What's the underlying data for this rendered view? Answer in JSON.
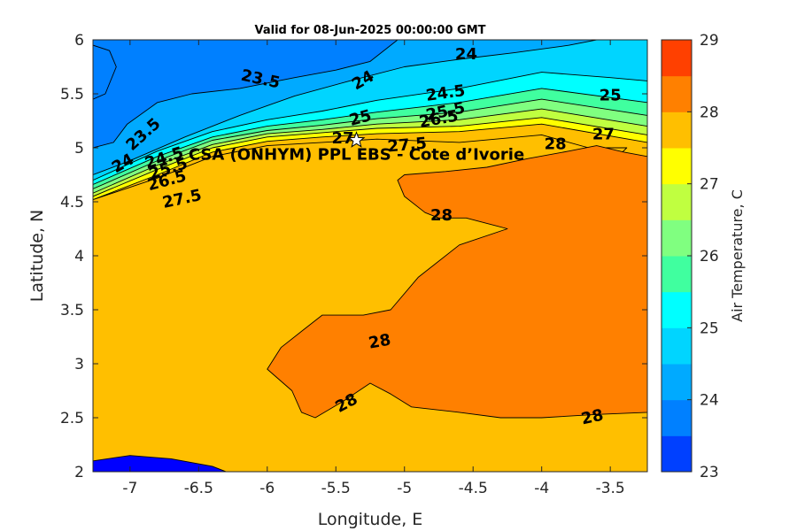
{
  "chart_data": {
    "type": "heatmap",
    "title": "Valid for 08-Jun-2025 00:00:00 GMT",
    "xlabel": "Longitude, E",
    "ylabel": "Latitude, N",
    "colorbar_label": "Air Temperature, C",
    "xlim": [
      -7.27,
      -3.23
    ],
    "ylim": [
      2,
      6
    ],
    "xticks": [
      -7,
      -6.5,
      -6,
      -5.5,
      -5,
      -4.5,
      -4,
      -3.5
    ],
    "xtick_labels": [
      "-7",
      "-6.5",
      "-6",
      "-5.5",
      "-5",
      "-4.5",
      "-4",
      "-3.5"
    ],
    "yticks": [
      2,
      2.5,
      3,
      3.5,
      4,
      4.5,
      5,
      5.5,
      6
    ],
    "ytick_labels": [
      "2",
      "2.5",
      "3",
      "3.5",
      "4",
      "4.5",
      "5",
      "5.5",
      "6"
    ],
    "clim": [
      23,
      29
    ],
    "colorbar_ticks": [
      23,
      24,
      25,
      26,
      27,
      28,
      29
    ],
    "colorbar_tick_labels": [
      "23",
      "24",
      "25",
      "26",
      "27",
      "28",
      "29"
    ],
    "levels": [
      23,
      23.5,
      24,
      24.5,
      25,
      25.5,
      26,
      26.5,
      27,
      27.5,
      28,
      28.5,
      29
    ],
    "level_colors": [
      "#0000ff",
      "#0040ff",
      "#0080ff",
      "#00aaff",
      "#00d5ff",
      "#00ffff",
      "#40ff9f",
      "#80ff80",
      "#c0ff40",
      "#ffff00",
      "#ffbf00",
      "#ff8000",
      "#ff4000",
      "#ff0000"
    ],
    "regions": [
      {
        "level": 27.5,
        "points": [
          [
            -7.27,
            2.0
          ],
          [
            -3.23,
            2.0
          ],
          [
            -3.23,
            4.85
          ],
          [
            -4.0,
            5.12
          ],
          [
            -4.6,
            5.05
          ],
          [
            -5.2,
            5.08
          ],
          [
            -5.6,
            5.05
          ],
          [
            -6.0,
            5.02
          ],
          [
            -6.4,
            4.92
          ],
          [
            -6.8,
            4.72
          ],
          [
            -7.27,
            4.52
          ]
        ]
      },
      {
        "level": 27.5,
        "points": [
          [
            -3.68,
            5.0
          ],
          [
            -3.62,
            4.72
          ],
          [
            -3.52,
            4.72
          ],
          [
            -3.46,
            4.9
          ],
          [
            -3.38,
            5.0
          ]
        ]
      },
      {
        "level": 27,
        "points": [
          [
            -7.27,
            4.52
          ],
          [
            -6.8,
            4.75
          ],
          [
            -6.4,
            4.96
          ],
          [
            -6.0,
            5.06
          ],
          [
            -5.6,
            5.1
          ],
          [
            -5.2,
            5.13
          ],
          [
            -4.6,
            5.15
          ],
          [
            -4.0,
            5.22
          ],
          [
            -3.23,
            5.05
          ],
          [
            -3.23,
            5.6
          ],
          [
            -7.27,
            5.6
          ]
        ]
      },
      {
        "level": 26.5,
        "points": [
          [
            -7.27,
            4.55
          ],
          [
            -6.8,
            4.8
          ],
          [
            -6.4,
            5.0
          ],
          [
            -6.0,
            5.1
          ],
          [
            -5.6,
            5.14
          ],
          [
            -5.2,
            5.18
          ],
          [
            -4.6,
            5.2
          ],
          [
            -4.0,
            5.28
          ],
          [
            -3.23,
            5.12
          ],
          [
            -3.23,
            5.7
          ],
          [
            -7.27,
            5.7
          ]
        ]
      },
      {
        "level": 26,
        "points": [
          [
            -7.27,
            4.58
          ],
          [
            -6.8,
            4.84
          ],
          [
            -6.4,
            5.03
          ],
          [
            -6.0,
            5.13
          ],
          [
            -5.6,
            5.17
          ],
          [
            -5.2,
            5.22
          ],
          [
            -4.6,
            5.26
          ],
          [
            -4.0,
            5.36
          ],
          [
            -3.23,
            5.2
          ],
          [
            -3.23,
            5.8
          ],
          [
            -7.27,
            5.8
          ]
        ]
      },
      {
        "level": 25.5,
        "points": [
          [
            -7.27,
            4.62
          ],
          [
            -6.8,
            4.88
          ],
          [
            -6.4,
            5.07
          ],
          [
            -6.0,
            5.16
          ],
          [
            -5.6,
            5.21
          ],
          [
            -5.2,
            5.27
          ],
          [
            -4.6,
            5.33
          ],
          [
            -4.0,
            5.45
          ],
          [
            -3.23,
            5.3
          ],
          [
            -3.23,
            5.9
          ],
          [
            -7.27,
            5.9
          ]
        ]
      },
      {
        "level": 25,
        "points": [
          [
            -7.27,
            4.66
          ],
          [
            -6.8,
            4.92
          ],
          [
            -6.4,
            5.1
          ],
          [
            -6.0,
            5.2
          ],
          [
            -5.6,
            5.26
          ],
          [
            -5.2,
            5.33
          ],
          [
            -4.6,
            5.42
          ],
          [
            -4.0,
            5.55
          ],
          [
            -3.23,
            5.42
          ],
          [
            -3.23,
            6.0
          ],
          [
            -7.27,
            6.0
          ]
        ]
      },
      {
        "level": 24.5,
        "points": [
          [
            -7.27,
            4.7
          ],
          [
            -6.8,
            4.97
          ],
          [
            -6.4,
            5.15
          ],
          [
            -6.0,
            5.26
          ],
          [
            -5.6,
            5.34
          ],
          [
            -5.2,
            5.44
          ],
          [
            -4.6,
            5.55
          ],
          [
            -4.0,
            5.7
          ],
          [
            -3.5,
            5.65
          ],
          [
            -3.23,
            5.62
          ],
          [
            -3.23,
            6.0
          ],
          [
            -7.27,
            6.0
          ]
        ]
      },
      {
        "level": 24,
        "points": [
          [
            -7.27,
            4.75
          ],
          [
            -7.0,
            4.88
          ],
          [
            -6.6,
            5.1
          ],
          [
            -6.2,
            5.3
          ],
          [
            -5.8,
            5.48
          ],
          [
            -5.4,
            5.62
          ],
          [
            -5.0,
            5.75
          ],
          [
            -4.6,
            5.82
          ],
          [
            -4.2,
            5.88
          ],
          [
            -3.8,
            5.95
          ],
          [
            -3.6,
            6.0
          ],
          [
            -7.27,
            6.0
          ]
        ]
      },
      {
        "level": 23.5,
        "points": [
          [
            -7.27,
            5.0
          ],
          [
            -7.12,
            5.05
          ],
          [
            -7.02,
            5.22
          ],
          [
            -6.8,
            5.42
          ],
          [
            -6.55,
            5.5
          ],
          [
            -6.2,
            5.55
          ],
          [
            -5.8,
            5.65
          ],
          [
            -5.5,
            5.72
          ],
          [
            -5.25,
            5.8
          ],
          [
            -5.05,
            6.0
          ],
          [
            -7.27,
            6.0
          ]
        ]
      },
      {
        "level": 23.5,
        "points": [
          [
            -7.27,
            5.45
          ],
          [
            -7.18,
            5.5
          ],
          [
            -7.1,
            5.75
          ],
          [
            -7.15,
            5.9
          ],
          [
            -7.27,
            5.95
          ]
        ]
      },
      {
        "level": 28,
        "points": [
          [
            -5.0,
            4.75
          ],
          [
            -4.7,
            4.78
          ],
          [
            -4.4,
            4.82
          ],
          [
            -4.1,
            4.9
          ],
          [
            -3.8,
            4.97
          ],
          [
            -3.6,
            5.02
          ],
          [
            -3.4,
            4.96
          ],
          [
            -3.23,
            4.92
          ],
          [
            -3.23,
            2.55
          ],
          [
            -3.6,
            2.53
          ],
          [
            -4.0,
            2.5
          ],
          [
            -4.3,
            2.5
          ],
          [
            -4.6,
            2.55
          ],
          [
            -4.95,
            2.6
          ],
          [
            -5.1,
            2.72
          ],
          [
            -5.25,
            2.82
          ],
          [
            -5.45,
            2.65
          ],
          [
            -5.65,
            2.5
          ],
          [
            -5.75,
            2.55
          ],
          [
            -5.82,
            2.75
          ],
          [
            -6.0,
            2.95
          ],
          [
            -5.9,
            3.15
          ],
          [
            -5.75,
            3.3
          ],
          [
            -5.6,
            3.45
          ],
          [
            -5.3,
            3.45
          ],
          [
            -5.1,
            3.5
          ],
          [
            -4.9,
            3.8
          ],
          [
            -4.6,
            4.1
          ],
          [
            -4.25,
            4.25
          ],
          [
            -4.55,
            4.35
          ],
          [
            -4.75,
            4.35
          ],
          [
            -4.85,
            4.4
          ],
          [
            -5.0,
            4.55
          ],
          [
            -5.05,
            4.7
          ]
        ]
      },
      {
        "level": 22.5,
        "points": [
          [
            -7.27,
            2.1
          ],
          [
            -7.0,
            2.15
          ],
          [
            -6.7,
            2.12
          ],
          [
            -6.4,
            2.05
          ],
          [
            -6.3,
            2.0
          ],
          [
            -7.27,
            2.0
          ]
        ]
      }
    ],
    "contour_labels": [
      {
        "text": "24",
        "x": -4.55,
        "y": 5.86,
        "angle": 0
      },
      {
        "text": "23.5",
        "x": -6.05,
        "y": 5.63,
        "angle": 12
      },
      {
        "text": "24",
        "x": -5.3,
        "y": 5.62,
        "angle": -30
      },
      {
        "text": "23.5",
        "x": -6.9,
        "y": 5.12,
        "angle": -42
      },
      {
        "text": "24",
        "x": -7.05,
        "y": 4.85,
        "angle": -30
      },
      {
        "text": "24.5",
        "x": -4.7,
        "y": 5.5,
        "angle": -8
      },
      {
        "text": "25",
        "x": -3.5,
        "y": 5.48,
        "angle": 0
      },
      {
        "text": "25",
        "x": -5.32,
        "y": 5.27,
        "angle": -15
      },
      {
        "text": "25.5",
        "x": -4.7,
        "y": 5.33,
        "angle": -12
      },
      {
        "text": "26.5",
        "x": -4.75,
        "y": 5.26,
        "angle": -10
      },
      {
        "text": "27.5",
        "x": -4.98,
        "y": 5.02,
        "angle": -5
      },
      {
        "text": "28",
        "x": -3.9,
        "y": 5.03,
        "angle": 0
      },
      {
        "text": "27",
        "x": -3.55,
        "y": 5.12,
        "angle": 0
      },
      {
        "text": "24.5",
        "x": -6.75,
        "y": 4.9,
        "angle": -18
      },
      {
        "text": "25.5",
        "x": -6.72,
        "y": 4.8,
        "angle": -18
      },
      {
        "text": "26.5",
        "x": -6.73,
        "y": 4.69,
        "angle": -15
      },
      {
        "text": "27.5",
        "x": -6.62,
        "y": 4.52,
        "angle": -12
      },
      {
        "text": "28",
        "x": -4.73,
        "y": 4.37,
        "angle": 0
      },
      {
        "text": "28",
        "x": -5.18,
        "y": 3.2,
        "angle": -10
      },
      {
        "text": "28",
        "x": -5.42,
        "y": 2.63,
        "angle": -28
      },
      {
        "text": "28",
        "x": -3.63,
        "y": 2.5,
        "angle": -12
      },
      {
        "text": "27",
        "x": -5.45,
        "y": 5.08,
        "angle": 0
      }
    ],
    "site": {
      "label": "CSA (ONHYM) PPL EBS - Cote d'Ivoire",
      "lon": -5.35,
      "lat": 5.07
    }
  },
  "site_text": "CSA (ONHYM) PPL EBS  - Cote d’Ivorie"
}
